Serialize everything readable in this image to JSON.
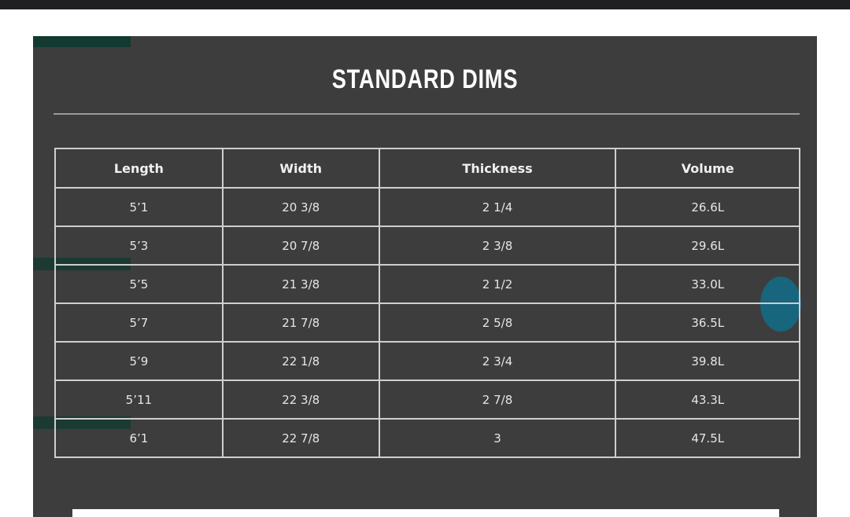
{
  "title": "STANDARD DIMS",
  "table": {
    "headers": [
      "Length",
      "Width",
      "Thickness",
      "Volume"
    ],
    "rows": [
      [
        "5’1",
        "20 3/8",
        "2 1/4",
        "26.6L"
      ],
      [
        "5’3",
        "20 7/8",
        "2 3/8",
        "29.6L"
      ],
      [
        "5’5",
        "21 3/8",
        "2 1/2",
        "33.0L"
      ],
      [
        "5’7",
        "21 7/8",
        "2 5/8",
        "36.5L"
      ],
      [
        "5’9",
        "22 1/8",
        "2 3/4",
        "39.8L"
      ],
      [
        "5’11",
        "22 3/8",
        "2 7/8",
        "43.3L"
      ],
      [
        "6’1",
        "22 7/8",
        "3",
        "47.5L"
      ]
    ]
  },
  "colors": {
    "panel": "#3d3d3d",
    "accent": "#123a30",
    "topbar": "#202022"
  }
}
